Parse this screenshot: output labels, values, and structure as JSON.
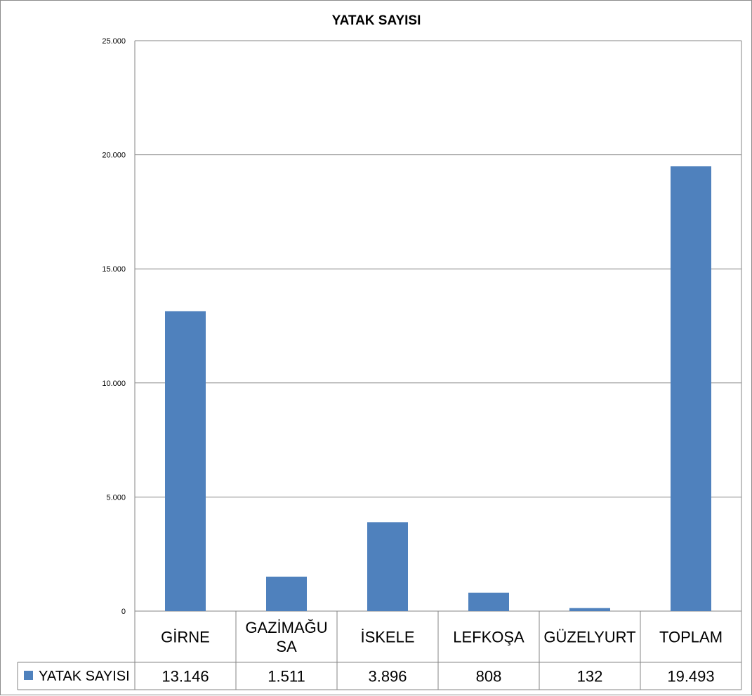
{
  "chart_data": {
    "type": "bar",
    "title": "YATAK SAYISI",
    "categories": [
      "GİRNE",
      "GAZİMAĞUSA",
      "İSKELE",
      "LEFKOŞA",
      "GÜZELYURT",
      "TOPLAM"
    ],
    "category_labels_wrapped": [
      [
        "GİRNE"
      ],
      [
        "GAZİMAĞU",
        "SA"
      ],
      [
        "İSKELE"
      ],
      [
        "LEFKOŞA"
      ],
      [
        "GÜZELYURT"
      ],
      [
        "TOPLAM"
      ]
    ],
    "series": [
      {
        "name": "YATAK SAYISI",
        "color": "#4f81bd",
        "values": [
          13146,
          1511,
          3896,
          808,
          132,
          19493
        ],
        "value_labels": [
          "13.146",
          "1.511",
          "3.896",
          "808",
          "132",
          "19.493"
        ]
      }
    ],
    "ylim": [
      0,
      25000
    ],
    "yticks": [
      0,
      5000,
      10000,
      15000,
      20000,
      25000
    ],
    "ytick_labels": [
      "0",
      "5.000",
      "10.000",
      "15.000",
      "20.000",
      "25.000"
    ],
    "grid": true,
    "data_table": true,
    "legend": "data-table-left"
  }
}
